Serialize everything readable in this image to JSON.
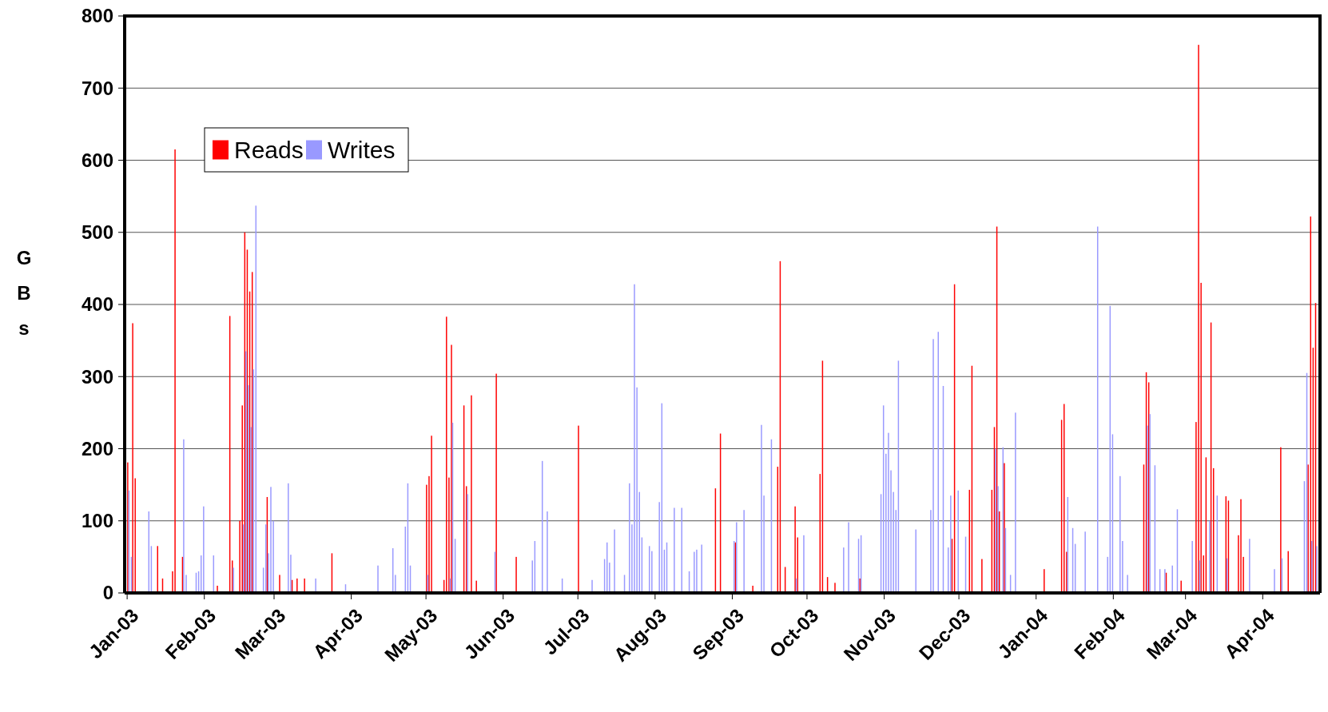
{
  "chart_data": {
    "type": "bar",
    "ylabel": "GBs",
    "legend": "top left",
    "grid": "y",
    "xlim": [
      "2002-12-31",
      "2004-04-24"
    ],
    "xticks": [
      {
        "value": "2003-01",
        "label": "Jan-03"
      },
      {
        "value": "2003-02",
        "label": "Feb-03"
      },
      {
        "value": "2003-03",
        "label": "Mar-03"
      },
      {
        "value": "2003-04",
        "label": "Apr-03"
      },
      {
        "value": "2003-05",
        "label": "May-03"
      },
      {
        "value": "2003-06",
        "label": "Jun-03"
      },
      {
        "value": "2003-07",
        "label": "Jul-03"
      },
      {
        "value": "2003-08",
        "label": "Aug-03"
      },
      {
        "value": "2003-09",
        "label": "Sep-03"
      },
      {
        "value": "2003-10",
        "label": "Oct-03"
      },
      {
        "value": "2003-11",
        "label": "Nov-03"
      },
      {
        "value": "2003-12",
        "label": "Dec-03"
      },
      {
        "value": "2004-01",
        "label": "Jan-04"
      },
      {
        "value": "2004-02",
        "label": "Feb-04"
      },
      {
        "value": "2004-03",
        "label": "Mar-04"
      },
      {
        "value": "2004-04",
        "label": "Apr-04"
      }
    ],
    "ylim": [
      0,
      800
    ],
    "yticks": [
      0,
      100,
      200,
      300,
      400,
      500,
      600,
      700,
      800
    ],
    "series": [
      {
        "name": "Reads",
        "color": "#ff0000",
        "x": [
          "2003-01-01",
          "2003-01-03",
          "2003-01-04",
          "2003-01-13",
          "2003-01-15",
          "2003-01-19",
          "2003-01-20",
          "2003-01-23",
          "2003-02-06",
          "2003-02-11",
          "2003-02-12",
          "2003-02-15",
          "2003-02-16",
          "2003-02-17",
          "2003-02-18",
          "2003-02-19",
          "2003-02-20",
          "2003-02-26",
          "2003-03-03",
          "2003-03-08",
          "2003-03-10",
          "2003-03-13",
          "2003-03-24",
          "2003-05-01",
          "2003-05-02",
          "2003-05-03",
          "2003-05-08",
          "2003-05-09",
          "2003-05-10",
          "2003-05-11",
          "2003-05-16",
          "2003-05-17",
          "2003-05-19",
          "2003-05-21",
          "2003-05-29",
          "2003-06-06",
          "2003-07-01",
          "2003-08-25",
          "2003-08-27",
          "2003-09-02",
          "2003-09-09",
          "2003-09-19",
          "2003-09-20",
          "2003-09-22",
          "2003-09-26",
          "2003-09-27",
          "2003-10-06",
          "2003-10-07",
          "2003-10-09",
          "2003-10-12",
          "2003-10-22",
          "2003-11-28",
          "2003-11-29",
          "2003-12-05",
          "2003-12-06",
          "2003-12-10",
          "2003-12-14",
          "2003-12-15",
          "2003-12-16",
          "2003-12-17",
          "2003-12-19",
          "2004-01-04",
          "2004-01-11",
          "2004-01-12",
          "2004-01-13",
          "2004-02-13",
          "2004-02-14",
          "2004-02-15",
          "2004-02-22",
          "2004-02-28",
          "2004-03-05",
          "2004-03-06",
          "2004-03-07",
          "2004-03-08",
          "2004-03-09",
          "2004-03-11",
          "2004-03-12",
          "2004-03-17",
          "2004-03-18",
          "2004-03-22",
          "2004-03-23",
          "2004-03-24",
          "2004-04-08",
          "2004-04-11",
          "2004-04-19",
          "2004-04-20",
          "2004-04-21",
          "2004-04-22"
        ],
        "values": [
          181,
          374,
          159,
          65,
          20,
          30,
          615,
          50,
          10,
          384,
          45,
          100,
          260,
          500,
          476,
          418,
          445,
          133,
          25,
          18,
          20,
          20,
          55,
          150,
          162,
          218,
          18,
          383,
          160,
          344,
          260,
          148,
          274,
          17,
          304,
          50,
          232,
          145,
          221,
          70,
          10,
          175,
          460,
          36,
          120,
          77,
          165,
          322,
          22,
          14,
          20,
          75,
          428,
          143,
          315,
          47,
          143,
          230,
          508,
          113,
          180,
          33,
          240,
          262,
          57,
          178,
          306,
          292,
          28,
          17,
          237,
          760,
          430,
          52,
          188,
          375,
          173,
          134,
          128,
          80,
          130,
          50,
          202,
          58,
          178,
          522,
          340,
          402
        ]
      },
      {
        "name": "Writes",
        "color": "#9999ff",
        "x": [
          "2003-01-01",
          "2003-01-02",
          "2003-01-09",
          "2003-01-10",
          "2003-01-23",
          "2003-01-24",
          "2003-01-28",
          "2003-01-29",
          "2003-01-30",
          "2003-01-31",
          "2003-02-04",
          "2003-02-12",
          "2003-02-16",
          "2003-02-17",
          "2003-02-18",
          "2003-02-19",
          "2003-02-20",
          "2003-02-21",
          "2003-02-24",
          "2003-02-25",
          "2003-02-26",
          "2003-02-27",
          "2003-02-28",
          "2003-03-06",
          "2003-03-07",
          "2003-03-17",
          "2003-03-29",
          "2003-04-11",
          "2003-04-17",
          "2003-04-18",
          "2003-04-22",
          "2003-04-23",
          "2003-04-24",
          "2003-05-01",
          "2003-05-10",
          "2003-05-11",
          "2003-05-12",
          "2003-05-17",
          "2003-05-28",
          "2003-06-12",
          "2003-06-13",
          "2003-06-16",
          "2003-06-18",
          "2003-06-24",
          "2003-07-06",
          "2003-07-11",
          "2003-07-12",
          "2003-07-13",
          "2003-07-15",
          "2003-07-19",
          "2003-07-21",
          "2003-07-22",
          "2003-07-23",
          "2003-07-24",
          "2003-07-25",
          "2003-07-26",
          "2003-07-29",
          "2003-07-30",
          "2003-08-02",
          "2003-08-03",
          "2003-08-04",
          "2003-08-05",
          "2003-08-08",
          "2003-08-11",
          "2003-08-14",
          "2003-08-16",
          "2003-08-17",
          "2003-08-19",
          "2003-09-01",
          "2003-09-02",
          "2003-09-05",
          "2003-09-12",
          "2003-09-13",
          "2003-09-16",
          "2003-09-26",
          "2003-09-29",
          "2003-10-15",
          "2003-10-17",
          "2003-10-21",
          "2003-10-22",
          "2003-10-30",
          "2003-10-31",
          "2003-11-01",
          "2003-11-02",
          "2003-11-03",
          "2003-11-04",
          "2003-11-05",
          "2003-11-06",
          "2003-11-13",
          "2003-11-19",
          "2003-11-20",
          "2003-11-22",
          "2003-11-24",
          "2003-11-26",
          "2003-11-27",
          "2003-11-30",
          "2003-12-03",
          "2003-12-15",
          "2003-12-16",
          "2003-12-18",
          "2003-12-19",
          "2003-12-21",
          "2003-12-23",
          "2004-01-13",
          "2004-01-15",
          "2004-01-16",
          "2004-01-20",
          "2004-01-25",
          "2004-01-29",
          "2004-01-30",
          "2004-01-31",
          "2004-02-03",
          "2004-02-04",
          "2004-02-06",
          "2004-02-14",
          "2004-02-15",
          "2004-02-17",
          "2004-02-19",
          "2004-02-21",
          "2004-02-24",
          "2004-02-26",
          "2004-03-03",
          "2004-03-06",
          "2004-03-10",
          "2004-03-13",
          "2004-03-17",
          "2004-03-26",
          "2004-04-05",
          "2004-04-08",
          "2004-04-17",
          "2004-04-18",
          "2004-04-20",
          "2004-04-22"
        ],
        "values": [
          142,
          50,
          113,
          65,
          213,
          25,
          28,
          30,
          52,
          120,
          52,
          35,
          95,
          335,
          288,
          230,
          310,
          537,
          35,
          95,
          55,
          147,
          100,
          152,
          53,
          20,
          12,
          38,
          62,
          25,
          92,
          152,
          38,
          25,
          20,
          236,
          75,
          137,
          57,
          45,
          72,
          183,
          113,
          20,
          18,
          47,
          70,
          42,
          88,
          25,
          152,
          95,
          428,
          285,
          140,
          77,
          65,
          58,
          126,
          263,
          60,
          70,
          118,
          118,
          30,
          57,
          60,
          67,
          72,
          98,
          115,
          233,
          135,
          213,
          20,
          80,
          63,
          98,
          75,
          80,
          137,
          260,
          193,
          222,
          170,
          140,
          115,
          322,
          88,
          115,
          352,
          362,
          287,
          63,
          135,
          142,
          78,
          200,
          148,
          202,
          90,
          25,
          250,
          133,
          90,
          68,
          85,
          508,
          50,
          398,
          220,
          162,
          72,
          25,
          232,
          248,
          177,
          33,
          33,
          38,
          116,
          72,
          45,
          100,
          135,
          48,
          75,
          33,
          48,
          155,
          305,
          72,
          65
        ]
      }
    ]
  }
}
